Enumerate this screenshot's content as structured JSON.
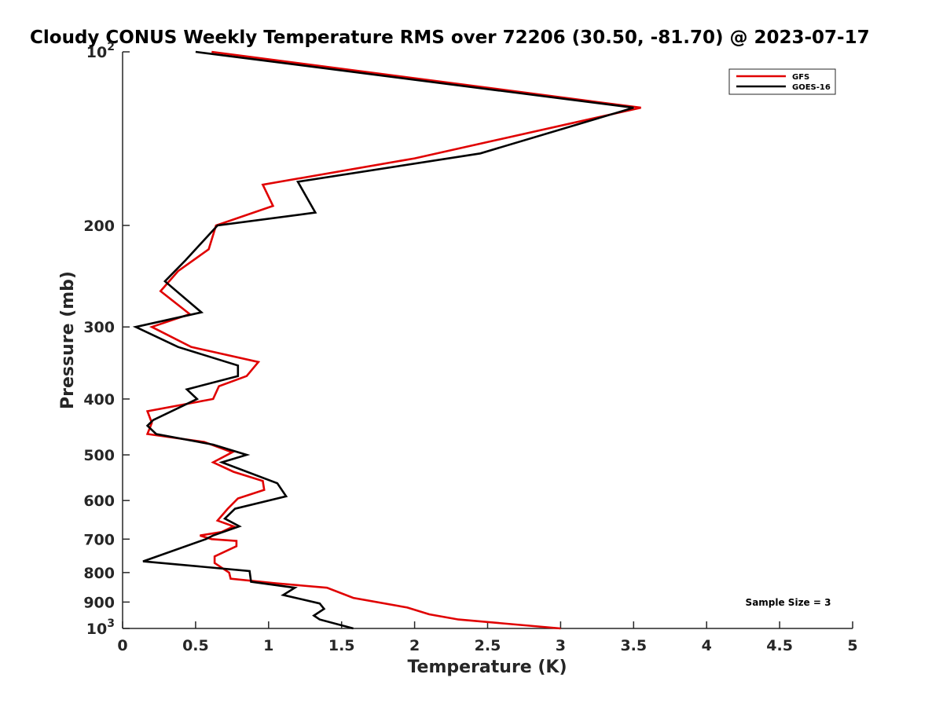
{
  "chart_data": {
    "type": "line",
    "title": "Cloudy CONUS Weekly Temperature RMS over 72206 (30.50, -81.70) @ 2023-07-17",
    "xlabel": "Temperature (K)",
    "ylabel": "Pressure (mb)",
    "xlim": [
      0,
      5
    ],
    "ylim": [
      100,
      1000
    ],
    "yscale": "log",
    "y_reversed": true,
    "x_ticks": [
      0,
      0.5,
      1,
      1.5,
      2,
      2.5,
      3,
      3.5,
      4,
      4.5,
      5
    ],
    "x_tick_labels": [
      "0",
      "0.5",
      "1",
      "1.5",
      "2",
      "2.5",
      "3",
      "3.5",
      "4",
      "4.5",
      "5"
    ],
    "y_ticks": [
      100,
      200,
      300,
      400,
      500,
      600,
      700,
      800,
      900,
      1000
    ],
    "y_tick_labels": [
      {
        "base": "10",
        "exp": "2"
      },
      {
        "base": "200"
      },
      {
        "base": "300"
      },
      {
        "base": "400"
      },
      {
        "base": "500"
      },
      {
        "base": "600"
      },
      {
        "base": "700"
      },
      {
        "base": "800"
      },
      {
        "base": "900"
      },
      {
        "base": "10",
        "exp": "3"
      }
    ],
    "legend_position": "top-right",
    "annotation": "Sample Size = 3",
    "series": [
      {
        "name": "GFS",
        "color": "#e00000",
        "points": [
          [
            0.61,
            100
          ],
          [
            3.55,
            125
          ],
          [
            2.0,
            153
          ],
          [
            0.96,
            170
          ],
          [
            1.03,
            185
          ],
          [
            0.64,
            200
          ],
          [
            0.59,
            220
          ],
          [
            0.38,
            240
          ],
          [
            0.26,
            260
          ],
          [
            0.46,
            285
          ],
          [
            0.2,
            300
          ],
          [
            0.47,
            325
          ],
          [
            0.93,
            345
          ],
          [
            0.85,
            365
          ],
          [
            0.66,
            380
          ],
          [
            0.62,
            400
          ],
          [
            0.17,
            420
          ],
          [
            0.2,
            440
          ],
          [
            0.17,
            460
          ],
          [
            0.56,
            475
          ],
          [
            0.75,
            495
          ],
          [
            0.62,
            515
          ],
          [
            0.76,
            535
          ],
          [
            0.96,
            555
          ],
          [
            0.97,
            575
          ],
          [
            0.79,
            595
          ],
          [
            0.72,
            620
          ],
          [
            0.65,
            650
          ],
          [
            0.76,
            665
          ],
          [
            0.68,
            680
          ],
          [
            0.53,
            690
          ],
          [
            0.61,
            700
          ],
          [
            0.78,
            705
          ],
          [
            0.78,
            720
          ],
          [
            0.63,
            750
          ],
          [
            0.63,
            770
          ],
          [
            0.73,
            800
          ],
          [
            0.74,
            820
          ],
          [
            1.05,
            835
          ],
          [
            1.4,
            850
          ],
          [
            1.58,
            885
          ],
          [
            1.95,
            920
          ],
          [
            2.1,
            945
          ],
          [
            2.3,
            965
          ],
          [
            3.0,
            1000
          ]
        ]
      },
      {
        "name": "GOES-16",
        "color": "#000000",
        "points": [
          [
            0.5,
            100
          ],
          [
            3.5,
            125
          ],
          [
            2.45,
            150
          ],
          [
            1.2,
            168
          ],
          [
            1.32,
            190
          ],
          [
            0.65,
            200
          ],
          [
            0.43,
            230
          ],
          [
            0.29,
            250
          ],
          [
            0.54,
            283
          ],
          [
            0.09,
            300
          ],
          [
            0.38,
            325
          ],
          [
            0.79,
            350
          ],
          [
            0.79,
            365
          ],
          [
            0.44,
            385
          ],
          [
            0.51,
            400
          ],
          [
            0.21,
            435
          ],
          [
            0.17,
            445
          ],
          [
            0.23,
            460
          ],
          [
            0.62,
            480
          ],
          [
            0.85,
            500
          ],
          [
            0.68,
            515
          ],
          [
            1.06,
            560
          ],
          [
            1.12,
            590
          ],
          [
            0.77,
            620
          ],
          [
            0.7,
            645
          ],
          [
            0.8,
            665
          ],
          [
            0.62,
            690
          ],
          [
            0.57,
            700
          ],
          [
            0.14,
            765
          ],
          [
            0.87,
            795
          ],
          [
            0.88,
            830
          ],
          [
            1.18,
            850
          ],
          [
            1.1,
            875
          ],
          [
            1.35,
            905
          ],
          [
            1.38,
            925
          ],
          [
            1.31,
            950
          ],
          [
            1.35,
            965
          ],
          [
            1.58,
            1000
          ]
        ]
      }
    ]
  }
}
